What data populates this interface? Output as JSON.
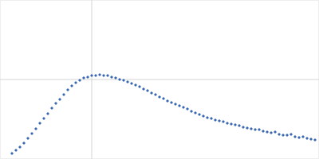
{
  "chart_data": {
    "type": "scatter",
    "x": [
      15,
      20,
      25,
      30,
      35,
      40,
      45,
      50,
      55,
      60,
      65,
      70,
      75,
      80,
      85,
      90,
      95,
      100,
      105,
      110,
      115,
      120,
      125,
      130,
      135,
      140,
      145,
      150,
      155,
      160,
      165,
      170,
      175,
      180,
      185,
      190,
      195,
      200,
      205,
      210,
      215,
      220,
      225,
      230,
      235,
      240,
      245,
      250,
      255,
      260,
      265,
      270,
      275,
      280,
      285,
      290,
      295,
      300,
      305,
      310,
      315,
      320,
      325,
      330,
      335,
      340,
      345,
      350,
      355,
      360,
      365,
      370,
      375,
      380,
      385,
      390,
      395
    ],
    "series": [
      {
        "color": "#3a68b4",
        "marker": "diamond",
        "values": [
          7,
          11,
          15,
          20,
          26,
          32,
          38,
          45,
          51,
          57,
          64,
          70,
          75,
          81,
          87,
          92,
          96,
          99,
          102,
          103,
          105,
          105,
          106,
          105,
          105,
          103,
          102,
          100,
          99,
          97,
          95,
          93,
          91,
          88,
          86,
          83,
          81,
          78,
          76,
          73,
          71,
          69,
          67,
          65,
          63,
          60,
          58,
          56,
          54,
          52,
          51,
          49,
          48,
          47,
          45,
          44,
          43,
          42,
          40,
          39,
          38,
          37,
          37,
          35,
          34,
          33,
          34,
          31,
          30,
          30,
          31,
          28,
          27,
          28,
          26,
          25,
          24
        ]
      }
    ],
    "xlim": [
      0,
      400
    ],
    "ylim": [
      0,
      200
    ],
    "xticks": [
      115
    ],
    "yticks": [
      100
    ],
    "grid": true,
    "tick_labels": false
  }
}
